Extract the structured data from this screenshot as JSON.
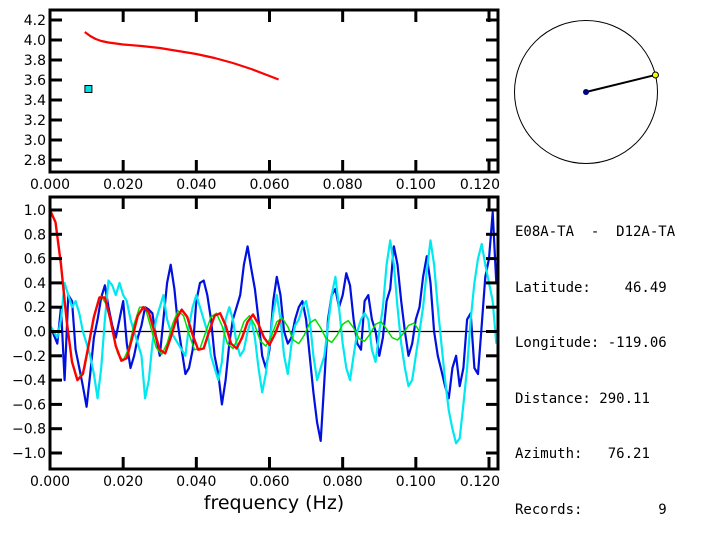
{
  "chart_data": [
    {
      "type": "line",
      "id": "velocity-dispersion",
      "xlim": [
        0.0,
        0.122
      ],
      "ylim": [
        2.7,
        4.25
      ],
      "xticks": [
        "0.000",
        "0.020",
        "0.040",
        "0.060",
        "0.080",
        "0.100",
        "0.120"
      ],
      "xtick_values": [
        0.0,
        0.02,
        0.04,
        0.06,
        0.08,
        0.1,
        0.12
      ],
      "yticks": [
        "4.2",
        "4.0",
        "3.8",
        "3.6",
        "3.4",
        "3.2",
        "3.0",
        "2.8"
      ],
      "ytick_values": [
        4.2,
        4.0,
        3.8,
        3.6,
        3.4,
        3.2,
        3.0,
        2.8
      ],
      "series": [
        {
          "name": "dispersion-curve",
          "color": "#ff0000",
          "x": [
            0.0095,
            0.011,
            0.0125,
            0.014,
            0.016,
            0.018,
            0.02,
            0.025,
            0.03,
            0.035,
            0.04,
            0.045,
            0.05,
            0.055,
            0.06,
            0.0625
          ],
          "y": [
            4.08,
            4.04,
            4.01,
            3.99,
            3.975,
            3.965,
            3.955,
            3.94,
            3.92,
            3.89,
            3.86,
            3.82,
            3.77,
            3.71,
            3.64,
            3.605
          ]
        }
      ],
      "points": [
        {
          "name": "measurement",
          "x": 0.0105,
          "y": 3.51,
          "color": "#00e0e0"
        }
      ]
    },
    {
      "type": "line",
      "id": "correlation",
      "xlabel": "frequency (Hz)",
      "xlim": [
        0.0,
        0.122
      ],
      "ylim": [
        -1.08,
        1.08
      ],
      "xticks": [
        "0.000",
        "0.020",
        "0.040",
        "0.060",
        "0.080",
        "0.100",
        "0.120"
      ],
      "xtick_values": [
        0.0,
        0.02,
        0.04,
        0.06,
        0.08,
        0.1,
        0.12
      ],
      "yticks": [
        "1.0",
        "0.8",
        "0.6",
        "0.4",
        "0.2",
        "0.0",
        "-0.2",
        "-0.4",
        "-0.6",
        "-0.8",
        "-1.0"
      ],
      "ytick_values": [
        1.0,
        0.8,
        0.6,
        0.4,
        0.2,
        0.0,
        -0.2,
        -0.4,
        -0.6,
        -0.8,
        -1.0
      ],
      "series": [
        {
          "name": "real-part",
          "color": "#0010e0",
          "x": [
            0.0,
            0.002,
            0.003,
            0.004,
            0.005,
            0.006,
            0.007,
            0.008,
            0.009,
            0.01,
            0.011,
            0.012,
            0.013,
            0.014,
            0.015,
            0.016,
            0.017,
            0.018,
            0.019,
            0.02,
            0.021,
            0.022,
            0.023,
            0.024,
            0.025,
            0.026,
            0.027,
            0.028,
            0.029,
            0.03,
            0.031,
            0.032,
            0.033,
            0.034,
            0.035,
            0.036,
            0.037,
            0.038,
            0.039,
            0.04,
            0.041,
            0.042,
            0.043,
            0.044,
            0.045,
            0.046,
            0.047,
            0.048,
            0.049,
            0.05,
            0.051,
            0.052,
            0.053,
            0.054,
            0.055,
            0.056,
            0.057,
            0.058,
            0.059,
            0.06,
            0.061,
            0.062,
            0.063,
            0.064,
            0.065,
            0.066,
            0.067,
            0.068,
            0.069,
            0.07,
            0.071,
            0.072,
            0.073,
            0.074,
            0.075,
            0.076,
            0.077,
            0.078,
            0.079,
            0.08,
            0.081,
            0.082,
            0.083,
            0.084,
            0.085,
            0.086,
            0.087,
            0.088,
            0.089,
            0.09,
            0.091,
            0.092,
            0.093,
            0.094,
            0.095,
            0.096,
            0.097,
            0.098,
            0.099,
            0.1,
            0.101,
            0.102,
            0.103,
            0.104,
            0.105,
            0.106,
            0.107,
            0.108,
            0.109,
            0.11,
            0.111,
            0.112,
            0.113,
            0.114,
            0.115,
            0.116,
            0.117,
            0.118,
            0.119,
            0.12,
            0.121,
            0.122
          ],
          "y": [
            0.05,
            -0.1,
            0.2,
            -0.4,
            0.3,
            0.25,
            -0.15,
            -0.3,
            -0.45,
            -0.62,
            -0.35,
            -0.05,
            0.1,
            0.28,
            0.38,
            0.2,
            0.05,
            -0.05,
            0.1,
            0.25,
            -0.1,
            -0.3,
            -0.2,
            -0.05,
            0.05,
            0.2,
            0.18,
            0.15,
            -0.05,
            -0.2,
            0.1,
            0.4,
            0.55,
            0.35,
            0.05,
            -0.15,
            -0.35,
            -0.3,
            -0.15,
            0.25,
            0.4,
            0.42,
            0.3,
            0.1,
            -0.2,
            -0.35,
            -0.6,
            -0.4,
            -0.1,
            0.1,
            0.2,
            0.3,
            0.55,
            0.7,
            0.52,
            0.35,
            0.1,
            -0.2,
            -0.3,
            -0.15,
            0.25,
            0.45,
            0.3,
            0.0,
            -0.1,
            -0.05,
            0.1,
            0.2,
            0.25,
            0.1,
            -0.2,
            -0.5,
            -0.75,
            -0.9,
            -0.4,
            0.1,
            0.3,
            0.35,
            0.2,
            0.3,
            0.48,
            0.38,
            0.1,
            -0.1,
            -0.15,
            0.25,
            0.3,
            0.1,
            0.0,
            -0.2,
            -0.05,
            0.25,
            0.35,
            0.7,
            0.55,
            0.25,
            0.0,
            -0.2,
            -0.1,
            0.1,
            0.2,
            0.45,
            0.62,
            0.4,
            0.0,
            -0.2,
            -0.32,
            -0.45,
            -0.55,
            -0.3,
            -0.2,
            -0.45,
            -0.3,
            0.1,
            0.15,
            -0.3,
            -0.35,
            0.05,
            0.45,
            0.6,
            0.98,
            0.4
          ]
        },
        {
          "name": "cross-spectrum",
          "color": "#00e8f0",
          "x": [
            0.0,
            0.001,
            0.002,
            0.003,
            0.004,
            0.005,
            0.006,
            0.007,
            0.008,
            0.009,
            0.01,
            0.011,
            0.012,
            0.013,
            0.014,
            0.015,
            0.016,
            0.017,
            0.018,
            0.019,
            0.02,
            0.021,
            0.022,
            0.023,
            0.024,
            0.025,
            0.026,
            0.027,
            0.028,
            0.029,
            0.03,
            0.031,
            0.032,
            0.033,
            0.034,
            0.035,
            0.036,
            0.037,
            0.038,
            0.039,
            0.04,
            0.041,
            0.042,
            0.043,
            0.044,
            0.045,
            0.046,
            0.047,
            0.048,
            0.049,
            0.05,
            0.051,
            0.052,
            0.053,
            0.054,
            0.055,
            0.056,
            0.057,
            0.058,
            0.059,
            0.06,
            0.061,
            0.062,
            0.063,
            0.064,
            0.065,
            0.066,
            0.067,
            0.068,
            0.069,
            0.07,
            0.071,
            0.072,
            0.073,
            0.074,
            0.075,
            0.076,
            0.077,
            0.078,
            0.079,
            0.08,
            0.081,
            0.082,
            0.083,
            0.084,
            0.085,
            0.086,
            0.087,
            0.088,
            0.089,
            0.09,
            0.091,
            0.092,
            0.093,
            0.094,
            0.095,
            0.096,
            0.097,
            0.098,
            0.099,
            0.1,
            0.101,
            0.102,
            0.103,
            0.104,
            0.105,
            0.106,
            0.107,
            0.108,
            0.109,
            0.11,
            0.111,
            0.112,
            0.113,
            0.114,
            0.115,
            0.116,
            0.117,
            0.118,
            0.119,
            0.12,
            0.121,
            0.122
          ],
          "y": [
            0.05,
            0.0,
            -0.05,
            0.1,
            0.4,
            0.3,
            0.2,
            0.25,
            0.15,
            0.0,
            -0.1,
            -0.2,
            -0.35,
            -0.55,
            -0.3,
            0.1,
            0.42,
            0.38,
            0.3,
            0.4,
            0.3,
            0.25,
            0.1,
            0.0,
            -0.1,
            -0.2,
            -0.55,
            -0.4,
            -0.1,
            0.1,
            0.2,
            0.3,
            0.1,
            0.0,
            -0.05,
            -0.1,
            -0.15,
            -0.2,
            0.05,
            0.2,
            0.3,
            0.2,
            0.1,
            0.0,
            -0.2,
            -0.3,
            -0.4,
            -0.25,
            0.1,
            0.2,
            0.1,
            -0.1,
            -0.2,
            -0.15,
            0.0,
            0.1,
            -0.05,
            -0.3,
            -0.5,
            -0.35,
            -0.1,
            0.15,
            0.3,
            0.1,
            -0.2,
            -0.35,
            -0.1,
            0.05,
            0.1,
            0.2,
            0.25,
            0.1,
            -0.2,
            -0.4,
            -0.3,
            -0.2,
            0.05,
            0.3,
            0.45,
            0.2,
            -0.1,
            -0.3,
            -0.4,
            -0.2,
            0.0,
            0.1,
            0.15,
            0.1,
            -0.15,
            -0.25,
            0.0,
            0.2,
            0.55,
            0.75,
            0.55,
            0.2,
            -0.1,
            -0.3,
            -0.45,
            -0.4,
            -0.2,
            0.0,
            0.2,
            0.5,
            0.75,
            0.55,
            0.2,
            -0.1,
            -0.4,
            -0.65,
            -0.8,
            -0.92,
            -0.88,
            -0.6,
            -0.3,
            0.1,
            0.4,
            0.6,
            0.72,
            0.55,
            0.4,
            0.25,
            -0.1
          ]
        },
        {
          "name": "bessel-fit",
          "color": "#00dd00",
          "x": [
            0.008,
            0.0095,
            0.011,
            0.0125,
            0.014,
            0.0155,
            0.017,
            0.0185,
            0.02,
            0.0215,
            0.023,
            0.0245,
            0.026,
            0.0275,
            0.029,
            0.0305,
            0.032,
            0.0335,
            0.035,
            0.0365,
            0.038,
            0.0395,
            0.041,
            0.0425,
            0.044,
            0.0455,
            0.047,
            0.0485,
            0.05,
            0.0515,
            0.053,
            0.0545,
            0.056,
            0.0575,
            0.059,
            0.0605,
            0.062,
            0.0635,
            0.065,
            0.0665,
            0.068,
            0.0695,
            0.071,
            0.0725,
            0.074,
            0.0755,
            0.077,
            0.0785,
            0.08,
            0.0815,
            0.083,
            0.0845,
            0.086,
            0.0875,
            0.089,
            0.0905,
            0.092,
            0.0935,
            0.095,
            0.0965,
            0.098,
            0.0995,
            0.101
          ],
          "y": [
            -0.38,
            -0.3,
            -0.05,
            0.18,
            0.29,
            0.22,
            0.02,
            -0.18,
            -0.24,
            -0.14,
            0.06,
            0.2,
            0.2,
            0.04,
            -0.13,
            -0.19,
            -0.1,
            0.06,
            0.17,
            0.13,
            -0.02,
            -0.15,
            -0.14,
            -0.01,
            0.12,
            0.15,
            0.05,
            -0.1,
            -0.14,
            -0.05,
            0.08,
            0.13,
            0.05,
            -0.08,
            -0.12,
            -0.04,
            0.08,
            0.11,
            0.04,
            -0.07,
            -0.1,
            -0.03,
            0.07,
            0.1,
            0.03,
            -0.06,
            -0.09,
            -0.03,
            0.06,
            0.09,
            0.03,
            -0.06,
            -0.08,
            -0.02,
            0.06,
            0.08,
            0.02,
            -0.05,
            -0.07,
            -0.02,
            0.05,
            0.07,
            0.0
          ]
        },
        {
          "name": "observed-fit",
          "color": "#ff0000",
          "x": [
            0.0,
            0.0015,
            0.003,
            0.0045,
            0.006,
            0.0075,
            0.009,
            0.0105,
            0.012,
            0.0135,
            0.015,
            0.0165,
            0.018,
            0.0195,
            0.021,
            0.0225,
            0.024,
            0.0255,
            0.027,
            0.0285,
            0.03,
            0.0315,
            0.033,
            0.0345,
            0.036,
            0.0375,
            0.039,
            0.0405,
            0.042,
            0.0435,
            0.045,
            0.0465,
            0.048,
            0.0495,
            0.051,
            0.0525,
            0.054,
            0.0555,
            0.057,
            0.0585,
            0.06,
            0.0615,
            0.063
          ],
          "y": [
            1.0,
            0.9,
            0.55,
            0.1,
            -0.25,
            -0.4,
            -0.35,
            -0.12,
            0.12,
            0.28,
            0.28,
            0.1,
            -0.12,
            -0.24,
            -0.22,
            -0.05,
            0.13,
            0.2,
            0.16,
            0.0,
            -0.15,
            -0.18,
            -0.05,
            0.1,
            0.18,
            0.12,
            -0.03,
            -0.15,
            -0.14,
            0.0,
            0.13,
            0.15,
            0.05,
            -0.1,
            -0.14,
            -0.05,
            0.08,
            0.14,
            0.06,
            -0.05,
            -0.11,
            -0.02,
            0.1
          ]
        }
      ]
    }
  ],
  "azimuth_diagram": {
    "center_station": {
      "name": "center",
      "color": "#000080"
    },
    "edge_station": {
      "name": "edge",
      "color": "#ffff00"
    },
    "azimuth_deg": 76.21
  },
  "info_panel": {
    "title": "E08A-TA  -  D12A-TA",
    "rows": [
      {
        "label": "Latitude:",
        "value": "46.49",
        "pad": "    "
      },
      {
        "label": "Longitude:",
        "value": "-119.06",
        "pad": " "
      },
      {
        "label": "Distance:",
        "value": "290.11",
        "pad": " "
      },
      {
        "label": "Azimuth:",
        "value": "76.21",
        "pad": "   "
      },
      {
        "label": "Records:",
        "value": "9",
        "pad": "         "
      }
    ]
  }
}
